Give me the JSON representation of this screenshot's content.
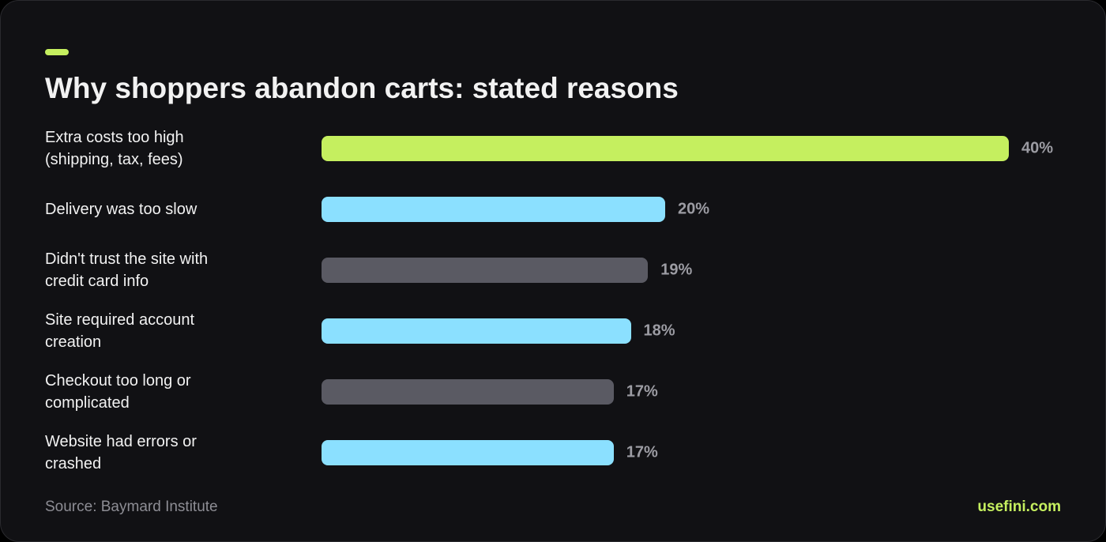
{
  "chart_data": {
    "type": "bar",
    "orientation": "horizontal",
    "title": "Why shoppers abandon carts: stated reasons",
    "categories": [
      "Extra costs too high (shipping, tax, fees)",
      "Delivery was too slow",
      "Didn't trust the site with credit card info",
      "Site required account creation",
      "Checkout too long or complicated",
      "Website had errors or crashed"
    ],
    "values": [
      40,
      20,
      19,
      18,
      17,
      17
    ],
    "value_labels": [
      "40%",
      "20%",
      "19%",
      "18%",
      "17%",
      "17%"
    ],
    "colors": [
      "#c5ef5f",
      "#8be0ff",
      "#5a5a63",
      "#8be0ff",
      "#5a5a63",
      "#8be0ff"
    ],
    "source": "Source: Baymard Institute",
    "brand": "usefini.com"
  }
}
